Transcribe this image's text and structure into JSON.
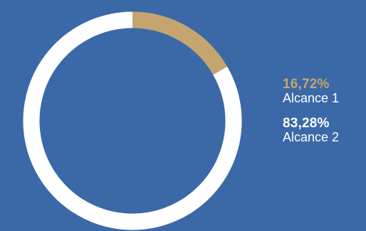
{
  "background_color": "#3b69a8",
  "chart_data": {
    "type": "pie",
    "variant": "donut",
    "categories": [
      "Alcance 1",
      "Alcance 2"
    ],
    "values": [
      16.72,
      83.28
    ],
    "value_labels": [
      "16,72%",
      "83,28%"
    ],
    "colors": [
      "#c3a56d",
      "#ffffff"
    ],
    "title": "",
    "legend_position": "right"
  }
}
